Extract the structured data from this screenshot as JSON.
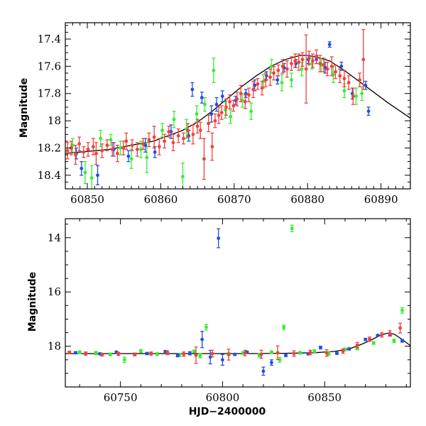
{
  "colors": {
    "green": "#33ee33",
    "blue": "#1f4fe0",
    "red": "#f2403a",
    "model": "#000000"
  },
  "chart_data": [
    {
      "type": "scatter",
      "title": "",
      "xlabel": "",
      "ylabel": "Magnitude",
      "xlim": [
        60847,
        60894
      ],
      "ylim": [
        18.5,
        17.28
      ],
      "y_inverted": true,
      "xticks": [
        60850,
        60860,
        60870,
        60880,
        60890
      ],
      "yticks": [
        17.4,
        17.6,
        17.8,
        18,
        18.2,
        18.4
      ],
      "ytick_labels": [
        "17.4",
        "17.6",
        "17.8",
        "18",
        "18.2",
        "18.4"
      ],
      "series": [
        {
          "color": "green",
          "x": [
            60848.0,
            60849.7,
            60850.6,
            60851.8,
            60853.2,
            60854.5,
            60856.0,
            60857.3,
            60858.1,
            60860.2,
            60861.8,
            60863.0,
            60863.5,
            60864.9,
            60866.0,
            60867.2,
            60868.8,
            60869.5,
            60871.1,
            60872.3,
            60874.0,
            60875.1,
            60876.5,
            60877.8,
            60879.2,
            60880.6,
            60881.9,
            60883.5,
            60885.0,
            60886.6,
            60887.4
          ],
          "y": [
            18.18,
            18.38,
            18.42,
            18.13,
            18.14,
            18.2,
            18.28,
            18.21,
            18.27,
            18.07,
            17.99,
            18.41,
            18.06,
            17.95,
            17.88,
            17.63,
            17.92,
            17.97,
            17.85,
            17.93,
            17.71,
            17.6,
            17.72,
            17.7,
            17.62,
            17.58,
            17.59,
            17.66,
            17.78,
            17.82,
            17.8
          ],
          "err": [
            0.05,
            0.08,
            0.09,
            0.06,
            0.04,
            0.05,
            0.07,
            0.06,
            0.11,
            0.05,
            0.06,
            0.1,
            0.07,
            0.06,
            0.05,
            0.09,
            0.06,
            0.05,
            0.05,
            0.06,
            0.05,
            0.05,
            0.06,
            0.05,
            0.05,
            0.04,
            0.05,
            0.06,
            0.05,
            0.06,
            0.05
          ]
        },
        {
          "color": "blue",
          "x": [
            60848.5,
            60849.2,
            60851.4,
            60853.6,
            60855.6,
            60857.9,
            60859.2,
            60861.4,
            60863.8,
            60864.3,
            60865.6,
            60866.9,
            60867.6,
            60868.4,
            60870.2,
            60871.6,
            60872.8,
            60874.4,
            60875.9,
            60876.8,
            60878.4,
            60880.1,
            60881.2,
            60882.4,
            60883.0,
            60884.6,
            60886.1,
            60887.9,
            60888.3
          ],
          "y": [
            18.24,
            18.35,
            18.4,
            18.21,
            18.26,
            18.18,
            18.23,
            18.08,
            18.11,
            17.77,
            17.83,
            17.95,
            17.88,
            17.82,
            17.85,
            17.8,
            17.74,
            17.67,
            17.7,
            17.61,
            17.58,
            17.55,
            17.55,
            17.61,
            17.44,
            17.6,
            17.8,
            17.74,
            17.93
          ],
          "err": [
            0.04,
            0.05,
            0.07,
            0.05,
            0.04,
            0.05,
            0.04,
            0.05,
            0.04,
            0.05,
            0.04,
            0.06,
            0.05,
            0.04,
            0.03,
            0.03,
            0.04,
            0.03,
            0.03,
            0.03,
            0.03,
            0.03,
            0.03,
            0.04,
            0.02,
            0.03,
            0.04,
            0.03,
            0.03
          ]
        },
        {
          "color": "red",
          "x": [
            60847.3,
            60847.8,
            60848.4,
            60848.9,
            60849.5,
            60850.1,
            60850.8,
            60851.2,
            60852.0,
            60852.7,
            60853.4,
            60854.1,
            60854.9,
            60855.3,
            60856.1,
            60856.8,
            60857.6,
            60858.4,
            60859.1,
            60859.8,
            60860.5,
            60861.1,
            60861.7,
            60862.4,
            60863.1,
            60863.7,
            60864.4,
            60865.0,
            60865.4,
            60865.9,
            60866.5,
            60867.0,
            60867.4,
            60867.9,
            60868.3,
            60868.9,
            60869.4,
            60869.9,
            60870.4,
            60870.9,
            60871.5,
            60872.0,
            60872.6,
            60873.2,
            60873.8,
            60874.3,
            60874.9,
            60875.4,
            60876.0,
            60876.6,
            60877.2,
            60877.8,
            60878.3,
            60878.8,
            60879.3,
            60879.8,
            60880.2,
            60880.7,
            60881.2,
            60881.7,
            60882.2,
            60882.7,
            60883.3,
            60883.8,
            60884.4,
            60885.0,
            60885.6,
            60886.2,
            60887.1,
            60887.6
          ],
          "y": [
            18.22,
            18.2,
            18.25,
            18.17,
            18.23,
            18.21,
            18.19,
            18.24,
            18.22,
            18.18,
            18.21,
            18.24,
            18.2,
            18.15,
            18.18,
            18.21,
            18.17,
            18.14,
            18.12,
            18.19,
            18.15,
            18.08,
            18.16,
            18.11,
            18.13,
            18.07,
            18.1,
            18.04,
            18.07,
            18.28,
            18.02,
            18.19,
            18.0,
            17.96,
            17.94,
            17.9,
            17.86,
            17.89,
            17.84,
            17.8,
            17.86,
            17.81,
            17.77,
            17.73,
            17.76,
            17.7,
            17.68,
            17.65,
            17.63,
            17.6,
            17.62,
            17.58,
            17.56,
            17.57,
            17.55,
            17.62,
            17.54,
            17.56,
            17.53,
            17.58,
            17.59,
            17.62,
            17.6,
            17.64,
            17.67,
            17.69,
            17.72,
            17.82,
            17.7,
            17.55
          ],
          "err": [
            0.06,
            0.05,
            0.07,
            0.05,
            0.04,
            0.05,
            0.06,
            0.08,
            0.05,
            0.04,
            0.05,
            0.06,
            0.05,
            0.06,
            0.04,
            0.05,
            0.04,
            0.05,
            0.08,
            0.06,
            0.05,
            0.04,
            0.06,
            0.05,
            0.04,
            0.05,
            0.07,
            0.05,
            0.06,
            0.15,
            0.06,
            0.1,
            0.05,
            0.06,
            0.05,
            0.06,
            0.05,
            0.04,
            0.05,
            0.06,
            0.05,
            0.05,
            0.06,
            0.04,
            0.05,
            0.05,
            0.06,
            0.05,
            0.04,
            0.05,
            0.06,
            0.05,
            0.05,
            0.06,
            0.05,
            0.25,
            0.05,
            0.05,
            0.05,
            0.06,
            0.05,
            0.05,
            0.07,
            0.05,
            0.05,
            0.06,
            0.05,
            0.06,
            0.05,
            0.22
          ]
        }
      ],
      "model_curve": {
        "x": [
          60847,
          60849,
          60851,
          60853,
          60855,
          60857,
          60859,
          60861,
          60863,
          60865,
          60867,
          60869,
          60871,
          60873,
          60875,
          60877,
          60879,
          60880,
          60881,
          60883,
          60885,
          60887,
          60889,
          60891,
          60894
        ],
        "y": [
          18.24,
          18.23,
          18.22,
          18.21,
          18.19,
          18.17,
          18.15,
          18.11,
          18.07,
          18.01,
          17.93,
          17.84,
          17.75,
          17.67,
          17.6,
          17.55,
          17.52,
          17.52,
          17.53,
          17.56,
          17.63,
          17.71,
          17.79,
          17.87,
          17.98
        ]
      }
    },
    {
      "type": "scatter",
      "title": "",
      "xlabel": "HJD−2400000",
      "ylabel": "Magnitude",
      "xlim": [
        60723,
        60892
      ],
      "ylim": [
        19.5,
        13.3
      ],
      "y_inverted": true,
      "xticks": [
        60750,
        60800,
        60850
      ],
      "yticks": [
        14,
        16,
        18
      ],
      "ytick_labels": [
        "14",
        "16",
        "18"
      ],
      "series": [
        {
          "color": "green",
          "x": [
            60730,
            60738,
            60745,
            60752,
            60760,
            60768,
            60772,
            60779,
            60786,
            60789,
            60792,
            60803,
            60810,
            60818,
            60824,
            60828,
            60830,
            60834,
            60838,
            60845,
            60852,
            60860,
            60866,
            60874,
            60884,
            60888
          ],
          "y": [
            18.22,
            18.25,
            18.3,
            18.5,
            18.18,
            18.29,
            18.2,
            18.32,
            18.19,
            18.35,
            17.3,
            18.28,
            18.25,
            18.33,
            18.22,
            18.5,
            17.3,
            13.66,
            18.24,
            18.18,
            18.27,
            18.12,
            18.08,
            17.88,
            17.8,
            16.68
          ],
          "err": [
            0.05,
            0.06,
            0.05,
            0.1,
            0.06,
            0.05,
            0.05,
            0.06,
            0.05,
            0.08,
            0.1,
            0.05,
            0.05,
            0.07,
            0.05,
            0.09,
            0.08,
            0.12,
            0.05,
            0.05,
            0.06,
            0.05,
            0.05,
            0.05,
            0.06,
            0.1
          ]
        },
        {
          "color": "blue",
          "x": [
            60728,
            60740,
            60748,
            60757,
            60763,
            60772,
            60778,
            60784,
            60790,
            60794,
            60798,
            60800,
            60806,
            60812,
            60820,
            60824,
            60831,
            60842,
            60848,
            60856,
            60862,
            60870,
            60876,
            60882,
            60888
          ],
          "y": [
            18.24,
            18.28,
            18.22,
            18.3,
            18.27,
            18.2,
            18.34,
            18.26,
            17.75,
            18.4,
            14.02,
            18.5,
            18.3,
            18.22,
            18.92,
            18.6,
            18.33,
            18.28,
            18.05,
            18.26,
            18.1,
            17.75,
            17.6,
            17.57,
            17.8
          ],
          "err": [
            0.04,
            0.04,
            0.04,
            0.05,
            0.04,
            0.04,
            0.05,
            0.06,
            0.3,
            0.25,
            0.35,
            0.2,
            0.04,
            0.04,
            0.15,
            0.1,
            0.05,
            0.04,
            0.05,
            0.04,
            0.04,
            0.04,
            0.03,
            0.04,
            0.05
          ]
        },
        {
          "color": "red",
          "x": [
            60725,
            60733,
            60741,
            60749,
            60757,
            60765,
            60773,
            60781,
            60787,
            60795,
            60803,
            60811,
            60819,
            60827,
            60835,
            60843,
            60851,
            60859,
            60866,
            60872,
            60878,
            60882,
            60887
          ],
          "y": [
            18.23,
            18.27,
            18.31,
            18.28,
            18.3,
            18.27,
            18.24,
            18.29,
            18.33,
            18.27,
            18.31,
            18.25,
            18.3,
            18.24,
            18.27,
            18.23,
            18.25,
            18.18,
            17.96,
            17.74,
            17.58,
            17.53,
            17.33
          ],
          "err": [
            0.05,
            0.06,
            0.05,
            0.06,
            0.05,
            0.06,
            0.07,
            0.08,
            0.3,
            0.12,
            0.2,
            0.1,
            0.15,
            0.25,
            0.1,
            0.08,
            0.12,
            0.08,
            0.1,
            0.08,
            0.08,
            0.1,
            0.18
          ]
        }
      ],
      "model_curve": {
        "x": [
          60723,
          60750,
          60780,
          60810,
          60830,
          60845,
          60855,
          60862,
          60868,
          60873,
          60878,
          60881,
          60884,
          60888,
          60892
        ],
        "y": [
          18.27,
          18.27,
          18.27,
          18.27,
          18.26,
          18.24,
          18.19,
          18.1,
          17.93,
          17.76,
          17.57,
          17.52,
          17.55,
          17.75,
          17.98
        ]
      }
    }
  ]
}
